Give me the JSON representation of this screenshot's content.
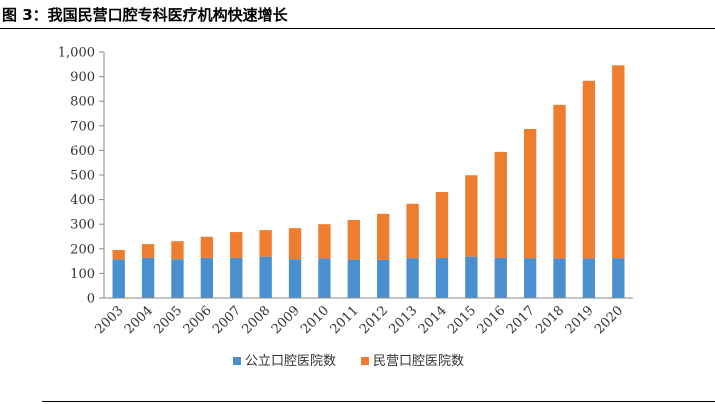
{
  "figure": {
    "title": "图 3：我国民营口腔专科医疗机构快速增长"
  },
  "colors": {
    "public": "#4a90cf",
    "private": "#ee7d2f",
    "axis": "#888888"
  },
  "chart_data": {
    "type": "bar",
    "stacked": true,
    "title": "",
    "xlabel": "",
    "ylabel": "",
    "ylim": [
      0,
      1000
    ],
    "yticks": [
      0,
      100,
      200,
      300,
      400,
      500,
      600,
      700,
      800,
      900,
      1000
    ],
    "ytick_labels": [
      "0",
      "100",
      "200",
      "300",
      "400",
      "500",
      "600",
      "700",
      "800",
      "900",
      "1,000"
    ],
    "grid": false,
    "legend_position": "bottom",
    "categories": [
      "2003",
      "2004",
      "2005",
      "2006",
      "2007",
      "2008",
      "2009",
      "2010",
      "2011",
      "2012",
      "2013",
      "2014",
      "2015",
      "2016",
      "2017",
      "2018",
      "2019",
      "2020"
    ],
    "series": [
      {
        "name": "公立口腔医院数",
        "values": [
          157,
          163,
          158,
          163,
          163,
          168,
          158,
          161,
          156,
          155,
          162,
          163,
          168,
          163,
          162,
          161,
          161,
          162
        ]
      },
      {
        "name": "民营口腔医院数",
        "values": [
          38,
          56,
          73,
          86,
          105,
          108,
          126,
          139,
          161,
          187,
          221,
          268,
          331,
          431,
          525,
          624,
          722,
          784
        ]
      }
    ]
  }
}
